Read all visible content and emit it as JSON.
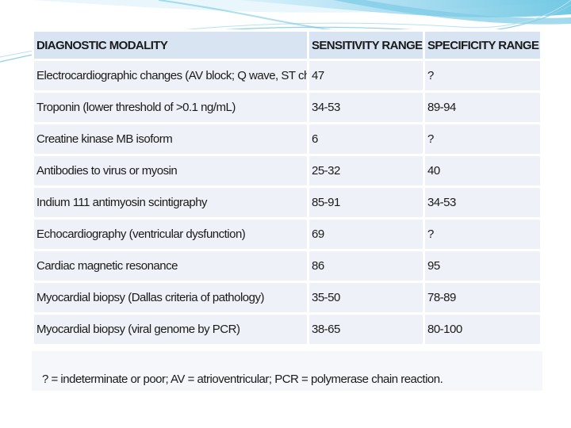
{
  "slide": {
    "accent_color": "#5bc0de",
    "table": {
      "headers": [
        "DIAGNOSTIC MODALITY",
        "SENSITIVITY RANGE (%)",
        "SPECIFICITY RANGE (%)"
      ],
      "rows": [
        [
          "Electrocardiographic changes (AV block; Q wave, ST changes)",
          "47",
          "?"
        ],
        [
          "Troponin (lower threshold of >0.1 ng/mL)",
          "34-53",
          "89-94"
        ],
        [
          "Creatine kinase MB isoform",
          "6",
          "?"
        ],
        [
          "Antibodies to virus or myosin",
          "25-32",
          "40"
        ],
        [
          "Indium 111 antimyosin scintigraphy",
          "85-91",
          "34-53"
        ],
        [
          "Echocardiography (ventricular dysfunction)",
          "69",
          "?"
        ],
        [
          "Cardiac magnetic resonance",
          "86",
          "95"
        ],
        [
          "Myocardial biopsy (Dallas criteria of pathology)",
          "35-50",
          "78-89"
        ],
        [
          "Myocardial biopsy (viral genome by PCR)",
          "38-65",
          "80-100"
        ]
      ]
    },
    "footnote": "? = indeterminate or poor; AV = atrioventricular; PCR = polymerase chain reaction."
  }
}
